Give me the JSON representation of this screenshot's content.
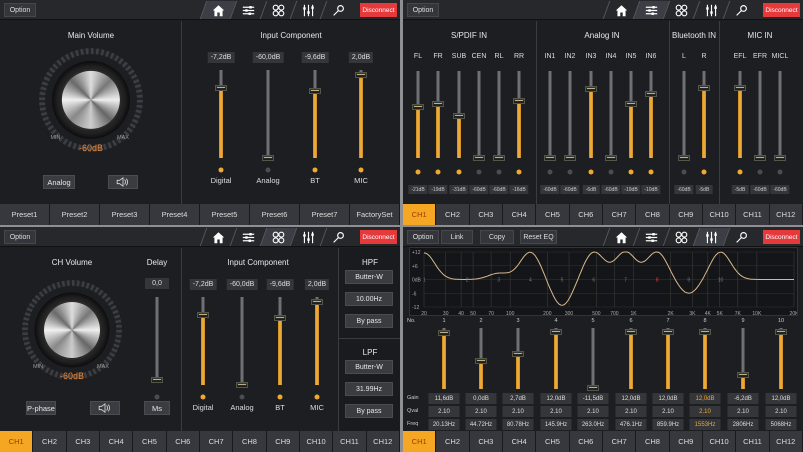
{
  "nav": {
    "option": "Option",
    "disconnect": "Disconnect",
    "icons": [
      "home-icon",
      "sliders-icon",
      "grid-icon",
      "mixer-icon",
      "mic-wrench-icon"
    ]
  },
  "colors": {
    "accent": "#f0a830",
    "disconnect": "#e5393b",
    "background": "#1d1e22",
    "active_tab": "#f5a623"
  },
  "channels": [
    "CH1",
    "CH2",
    "CH3",
    "CH4",
    "CH5",
    "CH6",
    "CH7",
    "CH8",
    "CH9",
    "CH10",
    "CH11",
    "CH12"
  ],
  "active_channel": 0,
  "home": {
    "active_nav": 0,
    "main_volume": {
      "title": "Main Volume",
      "min": "MIN",
      "max": "MAX",
      "value": "-60dB",
      "source_button": "Analog",
      "mute_icon": "speaker-icon"
    },
    "input_component": {
      "title": "Input Component",
      "channels": [
        {
          "label": "Digital",
          "value": "-7,2dB",
          "db": -7.2,
          "active": true
        },
        {
          "label": "Analog",
          "value": "-60,0dB",
          "db": -60,
          "active": false
        },
        {
          "label": "BT",
          "value": "-9,6dB",
          "db": -9.6,
          "active": true
        },
        {
          "label": "MIC",
          "value": "2,0dB",
          "db": 2.0,
          "active": true
        }
      ]
    },
    "presets": [
      "Preset1",
      "Preset2",
      "Preset3",
      "Preset4",
      "Preset5",
      "Preset6",
      "Preset7",
      "FactorySet"
    ]
  },
  "mixer": {
    "active_nav": 1,
    "groups": [
      {
        "title": "S/PDIF IN",
        "inputs": [
          {
            "label": "FL",
            "value": "-21dB",
            "level": 0.59,
            "active": true
          },
          {
            "label": "FR",
            "value": "-19dB",
            "level": 0.62,
            "active": true
          },
          {
            "label": "SUB",
            "value": "-31dB",
            "level": 0.48,
            "active": true
          },
          {
            "label": "CEN",
            "value": "-60dB",
            "level": 0,
            "active": false
          },
          {
            "label": "RL",
            "value": "-60dB",
            "level": 0,
            "active": false
          },
          {
            "label": "RR",
            "value": "-16dB",
            "level": 0.66,
            "active": true
          }
        ]
      },
      {
        "title": "Analog IN",
        "inputs": [
          {
            "label": "IN1",
            "value": "-60dB",
            "level": 0,
            "active": false
          },
          {
            "label": "IN2",
            "value": "-60dB",
            "level": 0,
            "active": false
          },
          {
            "label": "IN3",
            "value": "-6dB",
            "level": 0.79,
            "active": true
          },
          {
            "label": "IN4",
            "value": "-60dB",
            "level": 0,
            "active": false
          },
          {
            "label": "IN5",
            "value": "-19dB",
            "level": 0.62,
            "active": true
          },
          {
            "label": "IN6",
            "value": "-10dB",
            "level": 0.74,
            "active": true
          }
        ]
      },
      {
        "title": "Bluetooth IN",
        "inputs": [
          {
            "label": "L",
            "value": "-60dB",
            "level": 0,
            "active": false
          },
          {
            "label": "R",
            "value": "-5dB",
            "level": 0.8,
            "active": true
          }
        ]
      },
      {
        "title": "MIC IN",
        "inputs": [
          {
            "label": "EFL",
            "value": "-5dB",
            "level": 0.8,
            "active": true
          },
          {
            "label": "EFR",
            "value": "-60dB",
            "level": 0,
            "active": false
          },
          {
            "label": "MICL",
            "value": "-60dB",
            "level": 0,
            "active": false
          }
        ]
      }
    ]
  },
  "channel": {
    "active_nav": 2,
    "ch_volume": {
      "title": "CH Volume",
      "min": "MIN",
      "max": "MAX",
      "value": "-60dB",
      "phase_button": "P-phase",
      "mute_icon": "speaker-icon"
    },
    "delay": {
      "title": "Delay",
      "value": "0,0",
      "unit_button": "Ms",
      "level": 0
    },
    "input_component": {
      "title": "Input Component",
      "channels": [
        {
          "label": "Digital",
          "value": "-7,2dB",
          "db": -7.2,
          "active": true
        },
        {
          "label": "Analog",
          "value": "-60,0dB",
          "db": -60,
          "active": false
        },
        {
          "label": "BT",
          "value": "-9,6dB",
          "db": -9.6,
          "active": true
        },
        {
          "label": "MIC",
          "value": "2,0dB",
          "db": 2.0,
          "active": true
        }
      ]
    },
    "hpf": {
      "title": "HPF",
      "type": "Butter-W",
      "freq": "10.00Hz",
      "bypass": "By pass"
    },
    "lpf": {
      "title": "LPF",
      "type": "Butter-W",
      "freq": "31.99Hz",
      "bypass": "By pass"
    }
  },
  "eq": {
    "active_nav": 3,
    "buttons": {
      "link": "Link",
      "copy": "Copy",
      "reset": "Reset EQ"
    },
    "graph": {
      "y_ticks": [
        "+12",
        "+6",
        "0dB",
        "-6",
        "-12"
      ],
      "x_ticks": [
        "20",
        "30",
        "40",
        "50",
        "70",
        "100",
        "200",
        "300",
        "500",
        "700",
        "1K",
        "2K",
        "3K",
        "4K",
        "5K",
        "7K",
        "10K",
        "20K"
      ],
      "xlim_hz": [
        20,
        20000
      ],
      "ylim_db": [
        -12,
        12
      ]
    },
    "row_labels": {
      "no": "No.",
      "gain": "Gain",
      "q": "Qval",
      "freq": "Freq"
    },
    "selected_band": 8,
    "bands": [
      {
        "no": "1",
        "gain": "11,6dB",
        "gain_db": 11.6,
        "q": "2.10",
        "freq": "20.13Hz",
        "hz": 20.13
      },
      {
        "no": "2",
        "gain": "0,0dB",
        "gain_db": 0,
        "q": "2.10",
        "freq": "44.72Hz",
        "hz": 44.72
      },
      {
        "no": "3",
        "gain": "2,7dB",
        "gain_db": 2.7,
        "q": "2.10",
        "freq": "80.78Hz",
        "hz": 80.78
      },
      {
        "no": "4",
        "gain": "12,0dB",
        "gain_db": 12,
        "q": "2.10",
        "freq": "145.9Hz",
        "hz": 145.9
      },
      {
        "no": "5",
        "gain": "-11,5dB",
        "gain_db": -11.5,
        "q": "2.10",
        "freq": "263.0Hz",
        "hz": 263
      },
      {
        "no": "6",
        "gain": "12,0dB",
        "gain_db": 12,
        "q": "2.10",
        "freq": "476.1Hz",
        "hz": 476.1
      },
      {
        "no": "7",
        "gain": "12,0dB",
        "gain_db": 12,
        "q": "2.10",
        "freq": "859.9Hz",
        "hz": 859.9
      },
      {
        "no": "8",
        "gain": "12,0dB",
        "gain_db": 12,
        "q": "2.10",
        "freq": "1553Hz",
        "hz": 1553
      },
      {
        "no": "9",
        "gain": "-6,2dB",
        "gain_db": -6.2,
        "q": "2.10",
        "freq": "2806Hz",
        "hz": 2806
      },
      {
        "no": "10",
        "gain": "12,0dB",
        "gain_db": 12,
        "q": "2.10",
        "freq": "5068Hz",
        "hz": 5068
      }
    ]
  }
}
